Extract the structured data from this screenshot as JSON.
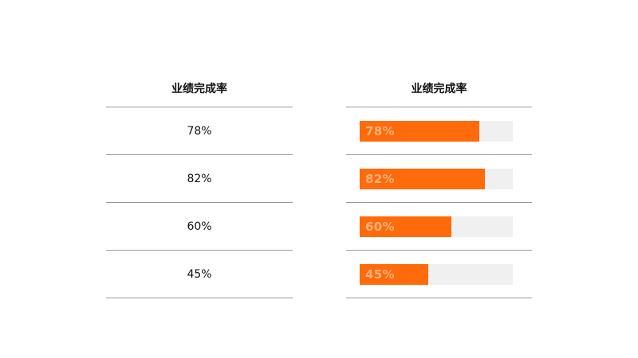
{
  "chart_data": [
    {
      "type": "table",
      "columns": [
        "业绩完成率"
      ],
      "rows": [
        [
          "78%"
        ],
        [
          "82%"
        ],
        [
          "60%"
        ],
        [
          "45%"
        ]
      ]
    },
    {
      "type": "bar",
      "orientation": "horizontal",
      "title": "业绩完成率",
      "categories": [
        "",
        "",
        "",
        ""
      ],
      "values": [
        78,
        82,
        60,
        45
      ],
      "labels": [
        "78%",
        "82%",
        "60%",
        "45%"
      ],
      "xlim": [
        0,
        100
      ],
      "colors": {
        "fill": "#ff6a0a",
        "track": "#f0f0f0",
        "label": "#ffb380"
      }
    }
  ]
}
